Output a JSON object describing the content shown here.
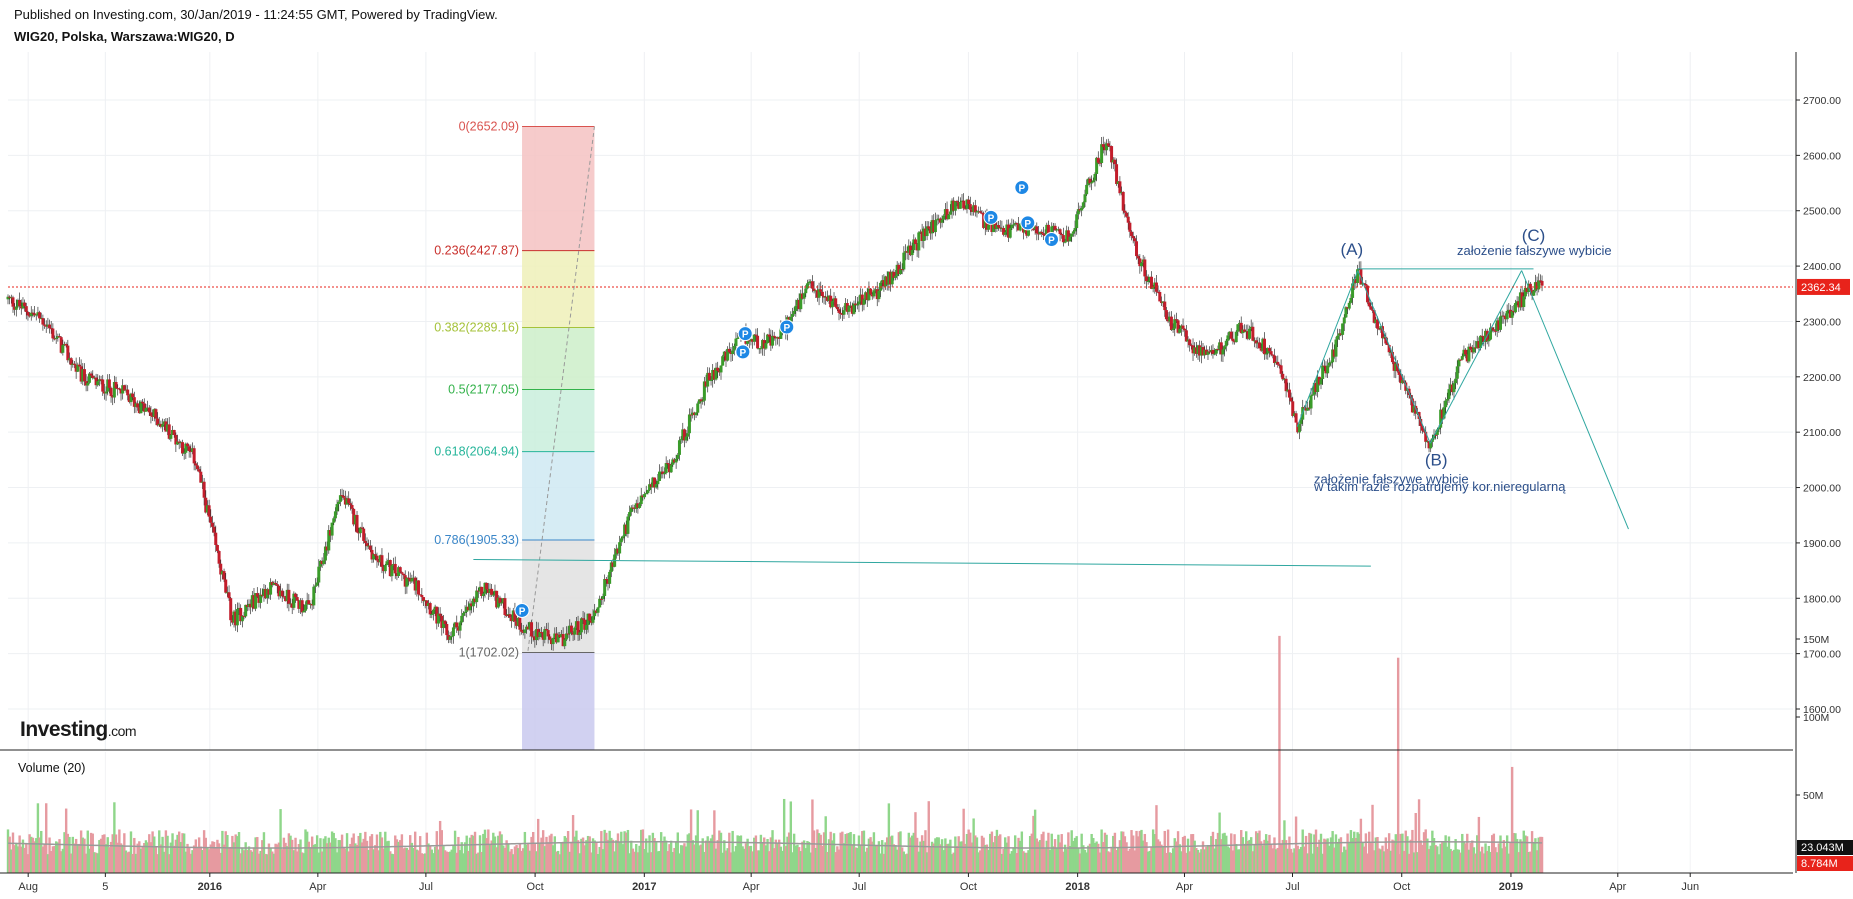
{
  "header": {
    "published": "Published on Investing.com, 30/Jan/2019 - 11:24:55 GMT, Powered by TradingView.",
    "symbol": "WIG20, Polska, Warszawa:WIG20, D"
  },
  "watermark": {
    "brand": "Investing",
    "suffix": ".com"
  },
  "volume_label": "Volume (20)",
  "colors": {
    "up": "#3a9b2a",
    "down": "#c21d2b",
    "vol_up": "#8fd68a",
    "vol_down": "#e69aa0",
    "current_price": "#e8231b",
    "wave_line": "#2fa7a0",
    "annotation": "#2c4f8a"
  },
  "chart_data": {
    "type": "line",
    "title": "WIG20, Polska, Warszawa:WIG20, D",
    "x_tick_labels": [
      "Aug",
      "5",
      "2016",
      "Apr",
      "Jul",
      "Oct",
      "2017",
      "Apr",
      "Jul",
      "Oct",
      "2018",
      "Apr",
      "Jul",
      "Oct",
      "2019",
      "Apr",
      "Jun"
    ],
    "y_tick_labels": [
      "2700.00",
      "2600.00",
      "2500.00",
      "2400.00",
      "2300.00",
      "2200.00",
      "2100.00",
      "2000.00",
      "1900.00",
      "1800.00",
      "1700.00",
      "1600.00"
    ],
    "volume_tick_labels": [
      "150M",
      "100M",
      "50M"
    ],
    "ylim": [
      1530,
      2745
    ],
    "grid": true,
    "current_price": "2362.34",
    "volume_current": "23.043M",
    "volume_ma": "8.784M",
    "series": [
      {
        "x": [
          "2015-07-15",
          "2015-08-15",
          "2015-09-15",
          "2015-10-20",
          "2015-11-20",
          "2015-12-20",
          "2016-01-20",
          "2016-02-20",
          "2016-03-25",
          "2016-04-20",
          "2016-05-20",
          "2016-06-25",
          "2016-07-20",
          "2016-08-20",
          "2016-09-20",
          "2016-10-20",
          "2016-11-20",
          "2016-12-20",
          "2017-01-25",
          "2017-02-25",
          "2017-03-25",
          "2017-04-20",
          "2017-05-20",
          "2017-06-20",
          "2017-07-20",
          "2017-08-25",
          "2017-09-25",
          "2017-10-25",
          "2017-11-25",
          "2017-12-25",
          "2018-01-25",
          "2018-02-20",
          "2018-03-20",
          "2018-04-20",
          "2018-05-20",
          "2018-06-20",
          "2018-07-05",
          "2018-08-05",
          "2018-08-25",
          "2018-09-20",
          "2018-10-25",
          "2018-11-20",
          "2018-12-20",
          "2019-01-10",
          "2019-01-28"
        ],
        "y": [
          2340,
          2300,
          2200,
          2170,
          2120,
          2050,
          1760,
          1820,
          1780,
          1990,
          1870,
          1820,
          1730,
          1820,
          1750,
          1720,
          1770,
          1950,
          2050,
          2200,
          2270,
          2260,
          2360,
          2320,
          2360,
          2460,
          2520,
          2460,
          2470,
          2450,
          2630,
          2420,
          2300,
          2230,
          2290,
          2230,
          2110,
          2250,
          2390,
          2240,
          2080,
          2230,
          2290,
          2340,
          2380
        ]
      }
    ],
    "fibonacci": [
      {
        "label": "0(2652.09)",
        "value": 2652.09
      },
      {
        "label": "0.236(2427.87)",
        "value": 2427.87
      },
      {
        "label": "0.382(2289.16)",
        "value": 2289.16
      },
      {
        "label": "0.5(2177.05)",
        "value": 2177.05
      },
      {
        "label": "0.618(2064.94)",
        "value": 2064.94
      },
      {
        "label": "0.786(1905.33)",
        "value": 1905.33
      },
      {
        "label": "1(1702.02)",
        "value": 1702.02
      }
    ],
    "annotations": {
      "wave_a": "(A)",
      "wave_b": "(B)",
      "wave_c": "(C)",
      "note_top": "założenie fałszywe wybicie",
      "note_bottom_1": "założenie fałszywe wybicie",
      "note_bottom_2": "w takim razie rozpatrujemy kor.nieregularną"
    },
    "markers": [
      "P",
      "P",
      "P",
      "P",
      "P",
      "P",
      "P",
      "P"
    ]
  }
}
